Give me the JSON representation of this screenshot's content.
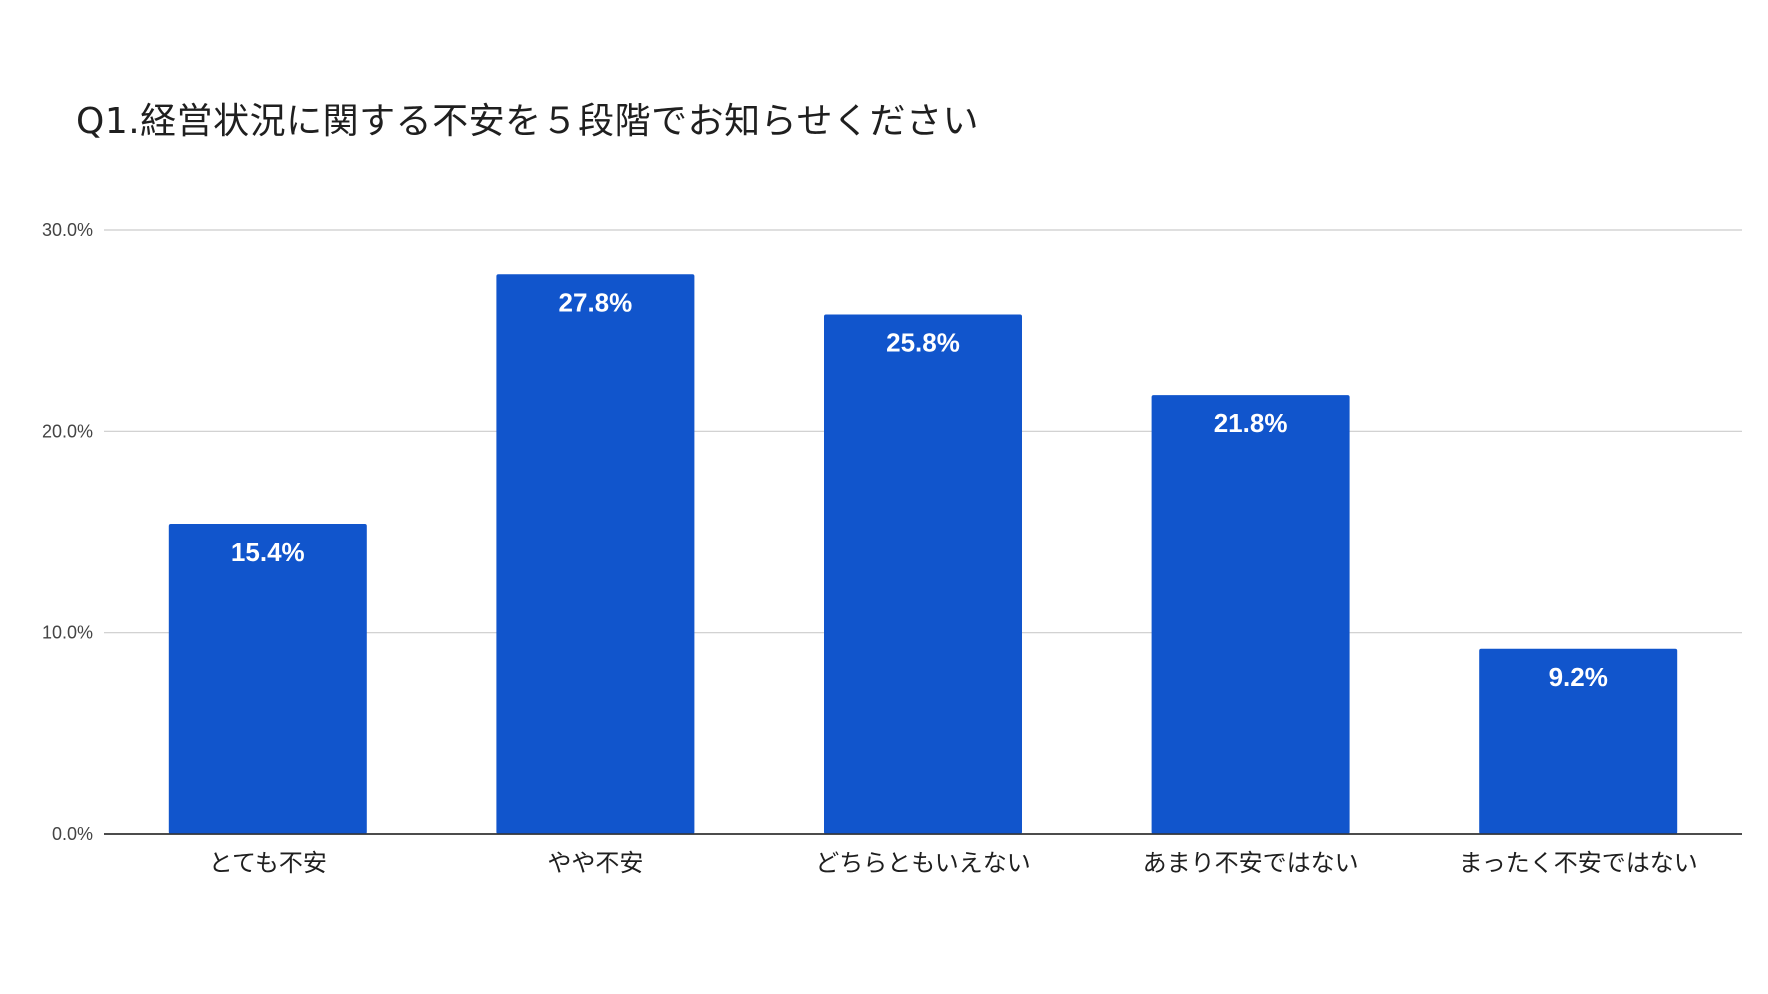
{
  "chart_data": {
    "type": "bar",
    "title": "Q1.経営状況に関する不安を５段階でお知らせください",
    "categories": [
      "とても不安",
      "やや不安",
      "どちらともいえない",
      "あまり不安ではない",
      "まったく不安ではない"
    ],
    "values": [
      15.4,
      27.8,
      25.8,
      21.8,
      9.2
    ],
    "data_labels": [
      "15.4%",
      "27.8%",
      "25.8%",
      "21.8%",
      "9.2%"
    ],
    "y_ticks": [
      0,
      10,
      20,
      30
    ],
    "y_tick_labels": [
      "0.0%",
      "10.0%",
      "20.0%",
      "30.0%"
    ],
    "ylim": [
      0,
      30
    ],
    "xlabel": "",
    "ylabel": "",
    "grid": true,
    "legend": "none",
    "bar_color": "#1155cc"
  }
}
